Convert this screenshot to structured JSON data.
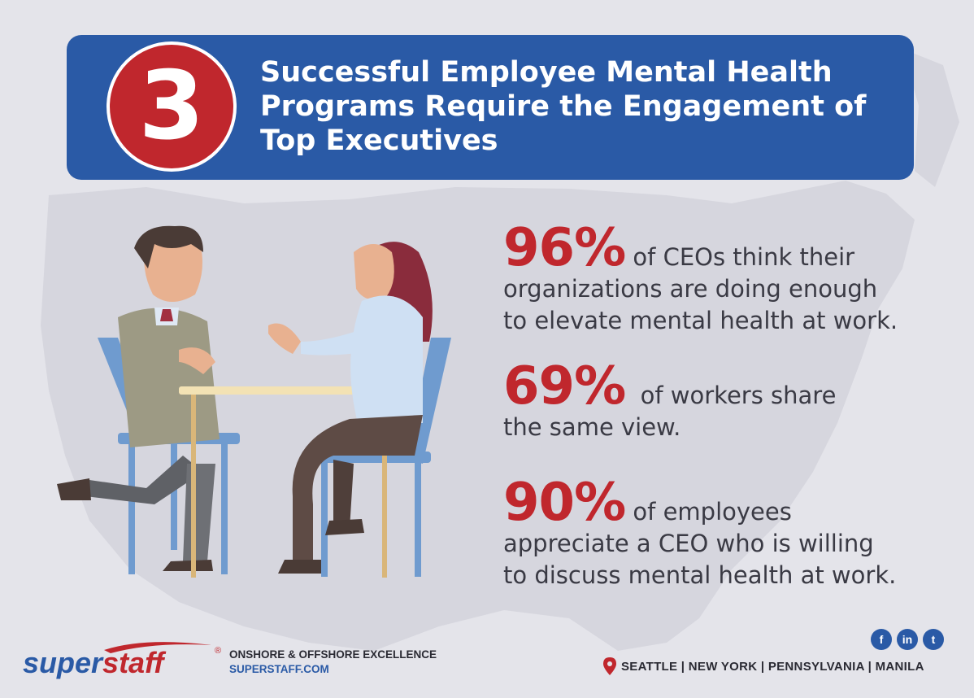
{
  "banner": {
    "number": "3",
    "title_lines": [
      "Successful Employee Mental Health",
      "Programs Require the Engagement of",
      "Top Executives"
    ]
  },
  "stats": [
    {
      "value": "96%",
      "lead": "of CEOs think their",
      "lines": [
        "organizations are doing enough",
        "to elevate mental health at work."
      ]
    },
    {
      "value": "69%",
      "lead": "of workers share",
      "lines": [
        "the same view."
      ]
    },
    {
      "value": "90%",
      "lead": "of employees",
      "lines": [
        "appreciate a CEO who is willing",
        "to discuss mental health at work."
      ]
    }
  ],
  "brand": {
    "logo_super": "super",
    "logo_staff": "staff",
    "registered": "®",
    "tagline": "ONSHORE & OFFSHORE EXCELLENCE",
    "website": "SUPERSTAFF.COM"
  },
  "social": [
    {
      "icon": "facebook-icon",
      "glyph": "f"
    },
    {
      "icon": "linkedin-icon",
      "glyph": "in"
    },
    {
      "icon": "twitter-icon",
      "glyph": "t"
    }
  ],
  "locations": "SEATTLE | NEW YORK | PENNSYLVANIA | MANILA",
  "colors": {
    "blue": "#2a5aa6",
    "red": "#c0272d",
    "background": "#e4e4ea"
  }
}
